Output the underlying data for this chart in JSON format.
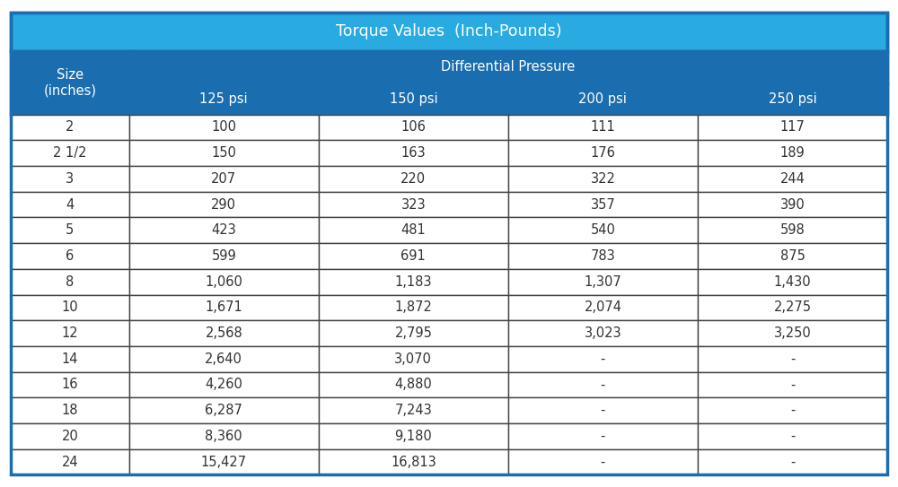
{
  "title": "Torque Values  (Inch-Pounds)",
  "subheader": "Differential Pressure",
  "col_headers": [
    "125 psi",
    "150 psi",
    "200 psi",
    "250 psi"
  ],
  "row_label_header": "Size\n(inches)",
  "rows": [
    [
      "2",
      "100",
      "106",
      "111",
      "117"
    ],
    [
      "2 1/2",
      "150",
      "163",
      "176",
      "189"
    ],
    [
      "3",
      "207",
      "220",
      "322",
      "244"
    ],
    [
      "4",
      "290",
      "323",
      "357",
      "390"
    ],
    [
      "5",
      "423",
      "481",
      "540",
      "598"
    ],
    [
      "6",
      "599",
      "691",
      "783",
      "875"
    ],
    [
      "8",
      "1,060",
      "1,183",
      "1,307",
      "1,430"
    ],
    [
      "10",
      "1,671",
      "1,872",
      "2,074",
      "2,275"
    ],
    [
      "12",
      "2,568",
      "2,795",
      "3,023",
      "3,250"
    ],
    [
      "14",
      "2,640",
      "3,070",
      "-",
      "-"
    ],
    [
      "16",
      "4,260",
      "4,880",
      "-",
      "-"
    ],
    [
      "18",
      "6,287",
      "7,243",
      "-",
      "-"
    ],
    [
      "20",
      "8,360",
      "9,180",
      "-",
      "-"
    ],
    [
      "24",
      "15,427",
      "16,813",
      "-",
      "-"
    ]
  ],
  "title_bg": "#29ABE2",
  "title_text_color": "#FFFFFF",
  "subheader_bg": "#1A6DAF",
  "subheader_text_color": "#FFFFFF",
  "col_header_bg": "#1A6DAF",
  "col_header_text_color": "#FFFFFF",
  "row_label_header_bg": "#1A6DAF",
  "row_label_header_text_color": "#FFFFFF",
  "size_cell_bg": "#FFFFFF",
  "size_cell_text_color": "#333333",
  "cell_bg": "#FFFFFF",
  "cell_text_color": "#333333",
  "inner_border_color": "#444444",
  "outer_border_color": "#1A6DAF",
  "title_fontsize": 12.5,
  "header_fontsize": 10.5,
  "cell_fontsize": 10.5,
  "figsize": [
    10.0,
    5.43
  ],
  "dpi": 100
}
